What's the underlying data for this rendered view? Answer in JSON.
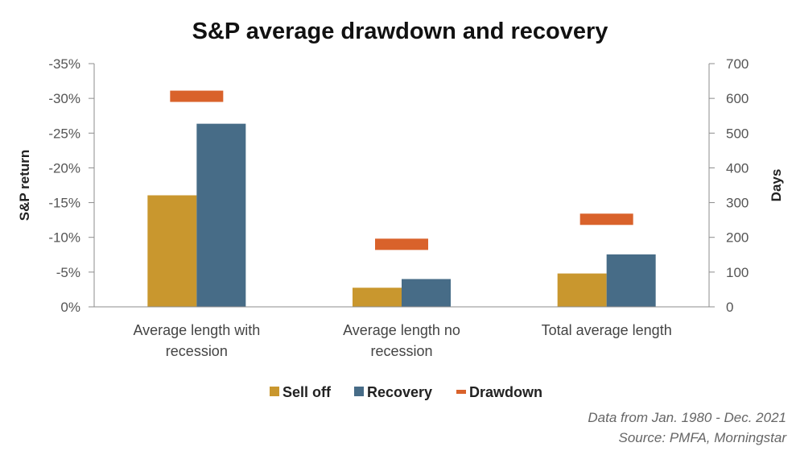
{
  "chart_data": {
    "type": "bar",
    "title": "S&P average drawdown and recovery",
    "categories": [
      [
        "Average length with",
        "recession"
      ],
      [
        "Average length no",
        "recession"
      ],
      [
        "Total average length"
      ]
    ],
    "y_left": {
      "label": "S&P return",
      "range": [
        0,
        35
      ],
      "ticks": [
        0,
        5,
        10,
        15,
        20,
        25,
        30,
        35
      ],
      "tick_labels": [
        "0%",
        "-5%",
        "-10%",
        "-15%",
        "-20%",
        "-25%",
        "-30%",
        "-35%"
      ]
    },
    "y_right": {
      "label": "Days",
      "range": [
        0,
        700
      ],
      "ticks": [
        0,
        100,
        200,
        300,
        400,
        500,
        600,
        700
      ],
      "tick_labels": [
        "0",
        "100",
        "200",
        "300",
        "400",
        "500",
        "600",
        "700"
      ]
    },
    "series": [
      {
        "name": "Sell off",
        "axis": "right",
        "kind": "bar",
        "color": "#C9972E",
        "values": [
          321,
          55,
          96
        ]
      },
      {
        "name": "Recovery",
        "axis": "right",
        "kind": "bar",
        "color": "#476C87",
        "values": [
          527,
          80,
          151
        ]
      },
      {
        "name": "Drawdown",
        "axis": "left",
        "kind": "marker",
        "color": "#D9622B",
        "values": [
          30.3,
          9.0,
          12.6
        ]
      }
    ],
    "legend": {
      "position": "bottom-center"
    }
  },
  "footnote": {
    "line1": "Data from Jan. 1980 - Dec. 2021",
    "line2": "Source: PMFA, Morningstar"
  }
}
